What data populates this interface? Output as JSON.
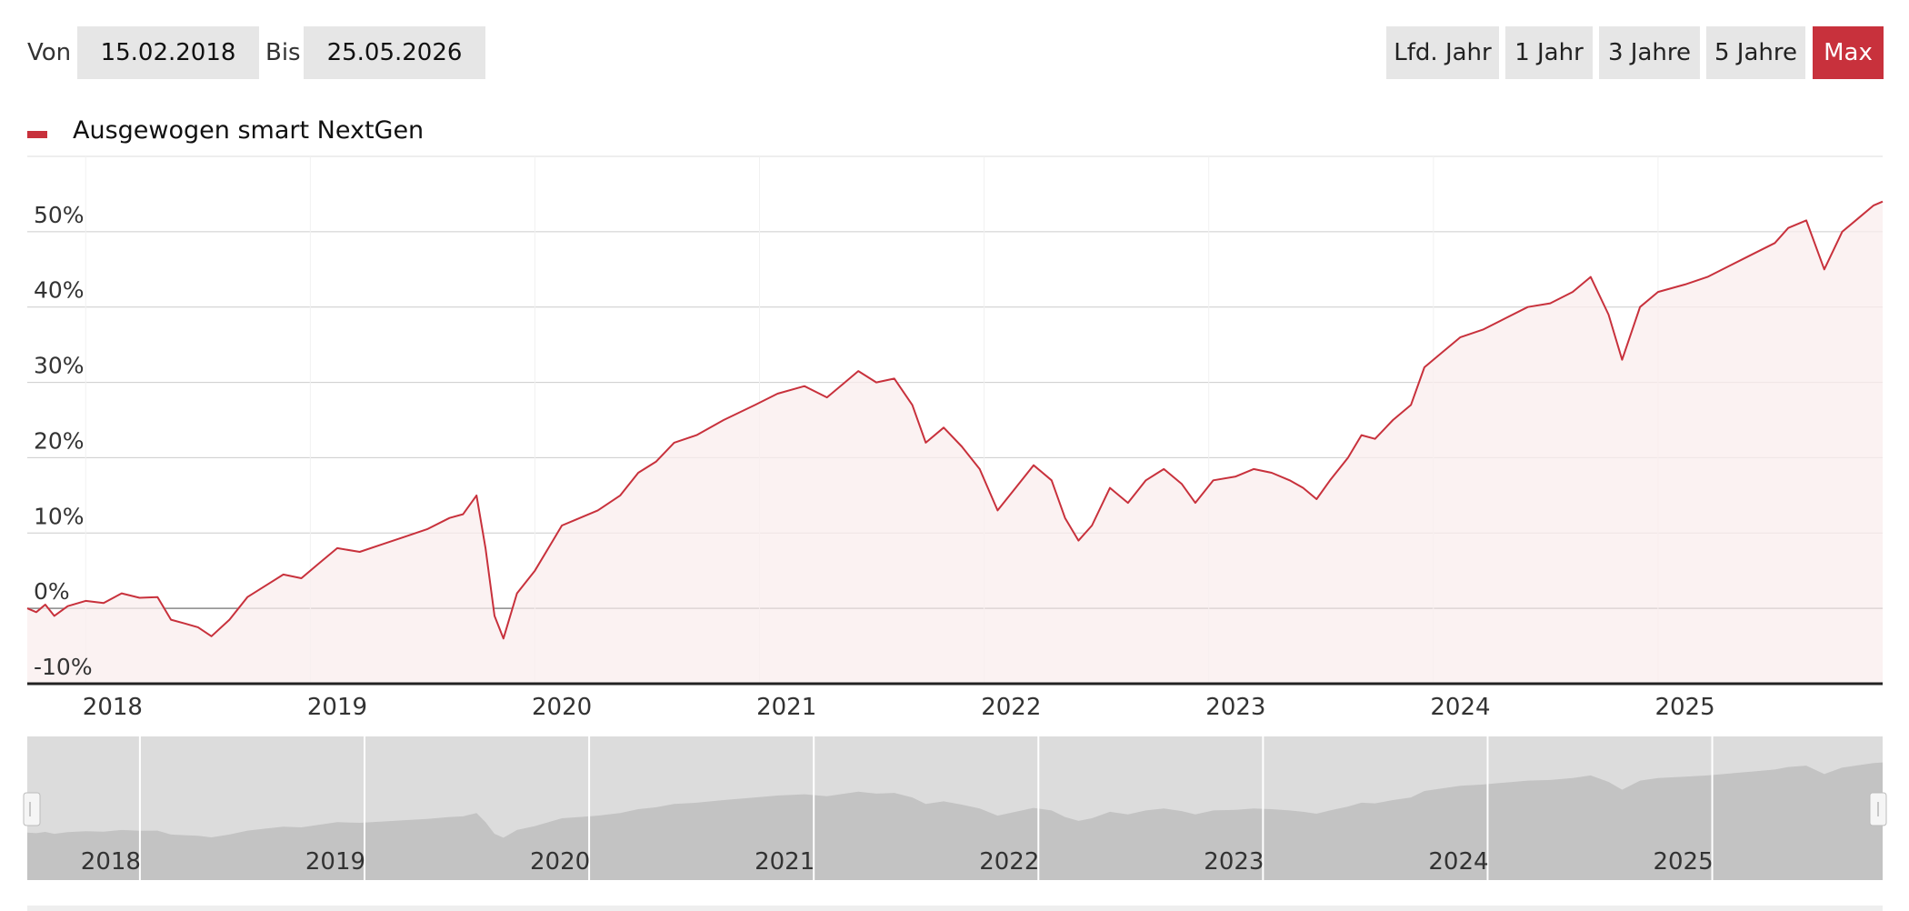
{
  "filters": {
    "from_label": "Von",
    "from_value": "15.02.2018",
    "to_label": "Bis",
    "to_value": "25.05.2026"
  },
  "ranges": [
    {
      "id": "lfd-jahr",
      "label": "Lfd. Jahr",
      "active": false
    },
    {
      "id": "1-jahr",
      "label": "1 Jahr",
      "active": false
    },
    {
      "id": "3-jahre",
      "label": "3 Jahre",
      "active": false
    },
    {
      "id": "5-jahre",
      "label": "5 Jahre",
      "active": false
    },
    {
      "id": "max",
      "label": "Max",
      "active": true
    }
  ],
  "colors": {
    "accent": "#c8313c",
    "area_fill": "#faeeee",
    "gridline": "#cccccc",
    "button_bg": "#e6e6e6",
    "navigator_bg": "#dcdcdc",
    "navigator_fill": "#c3c3c3"
  },
  "chart_data": {
    "type": "area",
    "legend_position": "top-left",
    "grid": true,
    "x_unit": "decimal year",
    "xlim": [
      2017.62,
      2025.88
    ],
    "ylim": [
      -10,
      60
    ],
    "y_ticks": [
      {
        "value": 50,
        "label": "50%"
      },
      {
        "value": 40,
        "label": "40%"
      },
      {
        "value": 30,
        "label": "30%"
      },
      {
        "value": 20,
        "label": "20%"
      },
      {
        "value": 10,
        "label": "10%"
      },
      {
        "value": 0,
        "label": "0%"
      },
      {
        "value": -10,
        "label": "-10%"
      }
    ],
    "x_ticks": [
      {
        "value": 2018,
        "label": "2018"
      },
      {
        "value": 2019,
        "label": "2019"
      },
      {
        "value": 2020,
        "label": "2020"
      },
      {
        "value": 2021,
        "label": "2021"
      },
      {
        "value": 2022,
        "label": "2022"
      },
      {
        "value": 2023,
        "label": "2023"
      },
      {
        "value": 2024,
        "label": "2024"
      },
      {
        "value": 2025,
        "label": "2025"
      }
    ],
    "series": [
      {
        "name": "Ausgewogen smart NextGen",
        "points": [
          [
            2017.62,
            0
          ],
          [
            2017.66,
            -0.5
          ],
          [
            2017.7,
            0.5
          ],
          [
            2017.74,
            -1
          ],
          [
            2017.8,
            0.3
          ],
          [
            2017.88,
            1
          ],
          [
            2017.96,
            0.7
          ],
          [
            2018.04,
            2
          ],
          [
            2018.12,
            1.4
          ],
          [
            2018.2,
            1.5
          ],
          [
            2018.26,
            -1.5
          ],
          [
            2018.32,
            -2
          ],
          [
            2018.38,
            -2.5
          ],
          [
            2018.44,
            -3.7
          ],
          [
            2018.52,
            -1.5
          ],
          [
            2018.6,
            1.5
          ],
          [
            2018.68,
            3
          ],
          [
            2018.76,
            4.5
          ],
          [
            2018.84,
            4
          ],
          [
            2018.92,
            6
          ],
          [
            2019.0,
            8
          ],
          [
            2019.1,
            7.5
          ],
          [
            2019.2,
            8.5
          ],
          [
            2019.3,
            9.5
          ],
          [
            2019.4,
            10.5
          ],
          [
            2019.5,
            12
          ],
          [
            2019.56,
            12.5
          ],
          [
            2019.62,
            15
          ],
          [
            2019.66,
            8
          ],
          [
            2019.7,
            -1
          ],
          [
            2019.74,
            -4
          ],
          [
            2019.8,
            2
          ],
          [
            2019.88,
            5
          ],
          [
            2019.96,
            9
          ],
          [
            2020.0,
            11
          ],
          [
            2020.08,
            12
          ],
          [
            2020.16,
            13
          ],
          [
            2020.26,
            15
          ],
          [
            2020.34,
            18
          ],
          [
            2020.42,
            19.5
          ],
          [
            2020.5,
            22
          ],
          [
            2020.6,
            23
          ],
          [
            2020.72,
            25
          ],
          [
            2020.86,
            27
          ],
          [
            2020.96,
            28.5
          ],
          [
            2021.08,
            29.5
          ],
          [
            2021.18,
            28
          ],
          [
            2021.26,
            30
          ],
          [
            2021.32,
            31.5
          ],
          [
            2021.4,
            30
          ],
          [
            2021.48,
            30.5
          ],
          [
            2021.56,
            27
          ],
          [
            2021.62,
            22
          ],
          [
            2021.7,
            24
          ],
          [
            2021.78,
            21.5
          ],
          [
            2021.86,
            18.5
          ],
          [
            2021.94,
            13
          ],
          [
            2022.02,
            16
          ],
          [
            2022.1,
            19
          ],
          [
            2022.18,
            17
          ],
          [
            2022.24,
            12
          ],
          [
            2022.3,
            9
          ],
          [
            2022.36,
            11
          ],
          [
            2022.44,
            16
          ],
          [
            2022.52,
            14
          ],
          [
            2022.6,
            17
          ],
          [
            2022.68,
            18.5
          ],
          [
            2022.76,
            16.5
          ],
          [
            2022.82,
            14
          ],
          [
            2022.9,
            17
          ],
          [
            2023.0,
            17.5
          ],
          [
            2023.08,
            18.5
          ],
          [
            2023.16,
            18
          ],
          [
            2023.24,
            17
          ],
          [
            2023.3,
            16
          ],
          [
            2023.36,
            14.5
          ],
          [
            2023.42,
            17
          ],
          [
            2023.5,
            20
          ],
          [
            2023.56,
            23
          ],
          [
            2023.62,
            22.5
          ],
          [
            2023.7,
            25
          ],
          [
            2023.78,
            27
          ],
          [
            2023.84,
            32
          ],
          [
            2023.92,
            34
          ],
          [
            2024.0,
            36
          ],
          [
            2024.1,
            37
          ],
          [
            2024.2,
            38.5
          ],
          [
            2024.3,
            40
          ],
          [
            2024.4,
            40.5
          ],
          [
            2024.5,
            42
          ],
          [
            2024.58,
            44
          ],
          [
            2024.66,
            39
          ],
          [
            2024.72,
            33
          ],
          [
            2024.8,
            40
          ],
          [
            2024.88,
            42
          ],
          [
            2025.0,
            43
          ],
          [
            2025.1,
            44
          ],
          [
            2025.2,
            45.5
          ],
          [
            2025.3,
            47
          ],
          [
            2025.4,
            48.5
          ],
          [
            2025.46,
            50.5
          ],
          [
            2025.54,
            51.5
          ],
          [
            2025.62,
            45
          ],
          [
            2025.7,
            50
          ],
          [
            2025.78,
            52
          ],
          [
            2025.84,
            53.5
          ],
          [
            2025.88,
            54
          ]
        ]
      }
    ],
    "navigator": {
      "x_ticks": [
        {
          "value": 2018,
          "label": "2018"
        },
        {
          "value": 2019,
          "label": "2019"
        },
        {
          "value": 2020,
          "label": "2020"
        },
        {
          "value": 2021,
          "label": "2021"
        },
        {
          "value": 2022,
          "label": "2022"
        },
        {
          "value": 2023,
          "label": "2023"
        },
        {
          "value": 2024,
          "label": "2024"
        },
        {
          "value": 2025,
          "label": "2025"
        }
      ]
    }
  }
}
